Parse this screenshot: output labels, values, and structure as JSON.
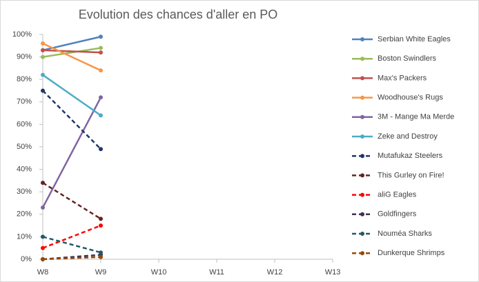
{
  "chart_data": {
    "type": "line",
    "title": "Evolution des chances d'aller en PO",
    "categories": [
      "W8",
      "W9",
      "W10",
      "W11",
      "W12",
      "W13"
    ],
    "ylim": [
      0,
      100
    ],
    "yticks": [
      {
        "value": 0,
        "label": "0%"
      },
      {
        "value": 10,
        "label": "10%"
      },
      {
        "value": 20,
        "label": "20%"
      },
      {
        "value": 30,
        "label": "30%"
      },
      {
        "value": 40,
        "label": "40%"
      },
      {
        "value": 50,
        "label": "50%"
      },
      {
        "value": 60,
        "label": "60%"
      },
      {
        "value": 70,
        "label": "70%"
      },
      {
        "value": 80,
        "label": "80%"
      },
      {
        "value": 90,
        "label": "90%"
      },
      {
        "value": 100,
        "label": "100%"
      }
    ],
    "grid": false,
    "legend": "right",
    "series": [
      {
        "name": "Serbian White Eagles",
        "color": "#4f81bd",
        "line_style": "solid",
        "values": [
          93,
          99,
          null,
          null,
          null,
          null
        ]
      },
      {
        "name": "Boston Swindlers",
        "color": "#9bbb59",
        "line_style": "solid",
        "values": [
          90,
          94,
          null,
          null,
          null,
          null
        ]
      },
      {
        "name": "Max's Packers",
        "color": "#c0504d",
        "line_style": "solid",
        "values": [
          93,
          92,
          null,
          null,
          null,
          null
        ]
      },
      {
        "name": "Woodhouse's Rugs",
        "color": "#f79646",
        "line_style": "solid",
        "values": [
          96,
          84,
          null,
          null,
          null,
          null
        ]
      },
      {
        "name": "3M - Mange Ma Merde",
        "color": "#8064a2",
        "line_style": "solid",
        "values": [
          23,
          72,
          null,
          null,
          null,
          null
        ]
      },
      {
        "name": "Zeke and Destroy",
        "color": "#4bacc6",
        "line_style": "solid",
        "values": [
          82,
          64,
          null,
          null,
          null,
          null
        ]
      },
      {
        "name": "Mutafukaz Steelers",
        "color": "#1f3864",
        "line_style": "dashed",
        "values": [
          75,
          49,
          null,
          null,
          null,
          null
        ]
      },
      {
        "name": "This Gurley on Fire!",
        "color": "#632523",
        "line_style": "dashed",
        "values": [
          34,
          18,
          null,
          null,
          null,
          null
        ]
      },
      {
        "name": "aliG Eagles",
        "color": "#ff0000",
        "line_style": "dashed",
        "values": [
          5,
          15,
          null,
          null,
          null,
          null
        ]
      },
      {
        "name": "Goldfingers",
        "color": "#3f3151",
        "line_style": "dashed",
        "values": [
          0,
          2,
          null,
          null,
          null,
          null
        ]
      },
      {
        "name": "Nouméa Sharks",
        "color": "#215967",
        "line_style": "dashed",
        "values": [
          10,
          3,
          null,
          null,
          null,
          null
        ]
      },
      {
        "name": "Dunkerque Shrimps",
        "color": "#974706",
        "line_style": "dashed",
        "values": [
          0,
          1,
          null,
          null,
          null,
          null
        ]
      }
    ]
  }
}
